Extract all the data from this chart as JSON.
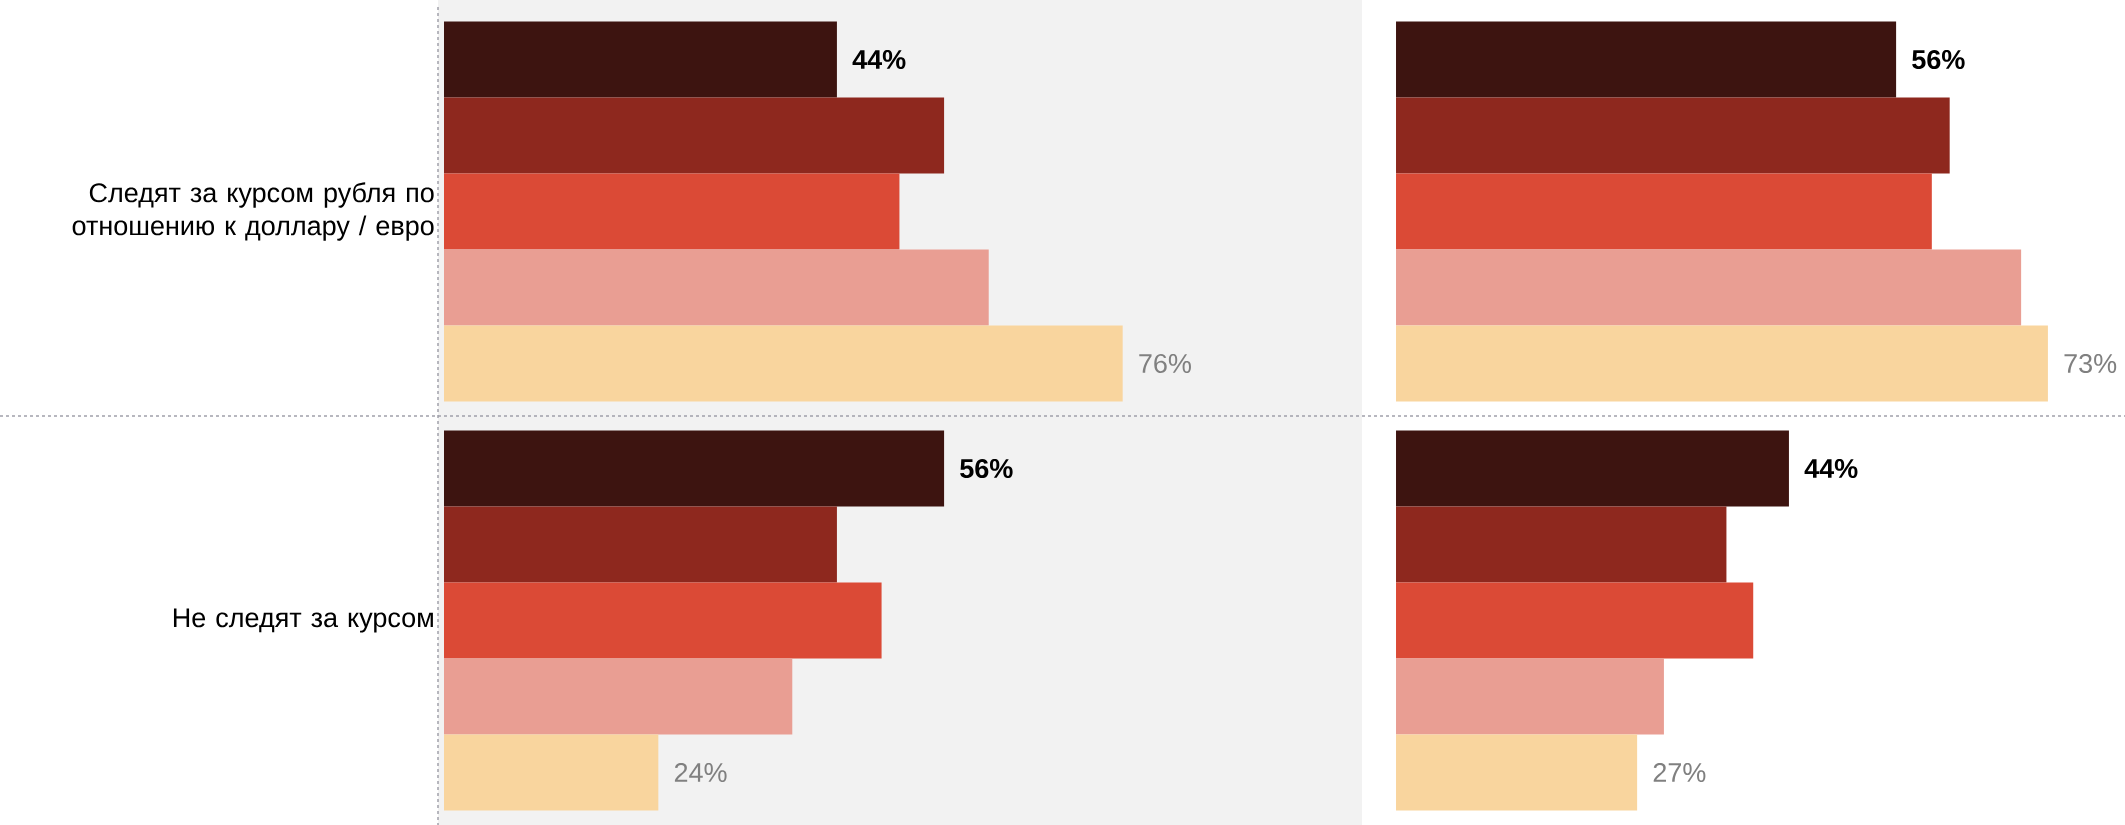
{
  "chart_data": [
    {
      "type": "bar",
      "orientation": "horizontal",
      "tick_labels": "y",
      "categories": [
        "Следят за курсом рубля по отношению к доллару / евро",
        "Не следят за курсом"
      ],
      "series": [
        {
          "color": "#3d1410",
          "values": [
            44,
            56
          ],
          "value_labels": [
            "**44%**",
            "**56%**"
          ]
        },
        {
          "color": "#8e281e",
          "values": [
            56,
            44
          ]
        },
        {
          "color": "#db4a36",
          "values": [
            51,
            49
          ]
        },
        {
          "color": "#e99e93",
          "values": [
            61,
            39
          ]
        },
        {
          "color": "#f9d59e",
          "values": [
            76,
            24
          ],
          "value_labels": [
            "76%",
            "24%"
          ]
        }
      ]
    },
    {
      "type": "bar",
      "orientation": "horizontal",
      "tick_labels": false,
      "categories": [
        null,
        null
      ],
      "series": [
        {
          "color": "#3d1410",
          "values": [
            56,
            44
          ],
          "value_labels": [
            "**56%**",
            "**44%**"
          ]
        },
        {
          "color": "#8e281e",
          "values": [
            62,
            37
          ]
        },
        {
          "color": "#db4a36",
          "values": [
            60,
            40
          ]
        },
        {
          "color": "#e99e93",
          "values": [
            70,
            30
          ]
        },
        {
          "color": "#f9d59e",
          "values": [
            73,
            27
          ],
          "value_labels": [
            "73%",
            "27%"
          ]
        }
      ]
    }
  ]
}
